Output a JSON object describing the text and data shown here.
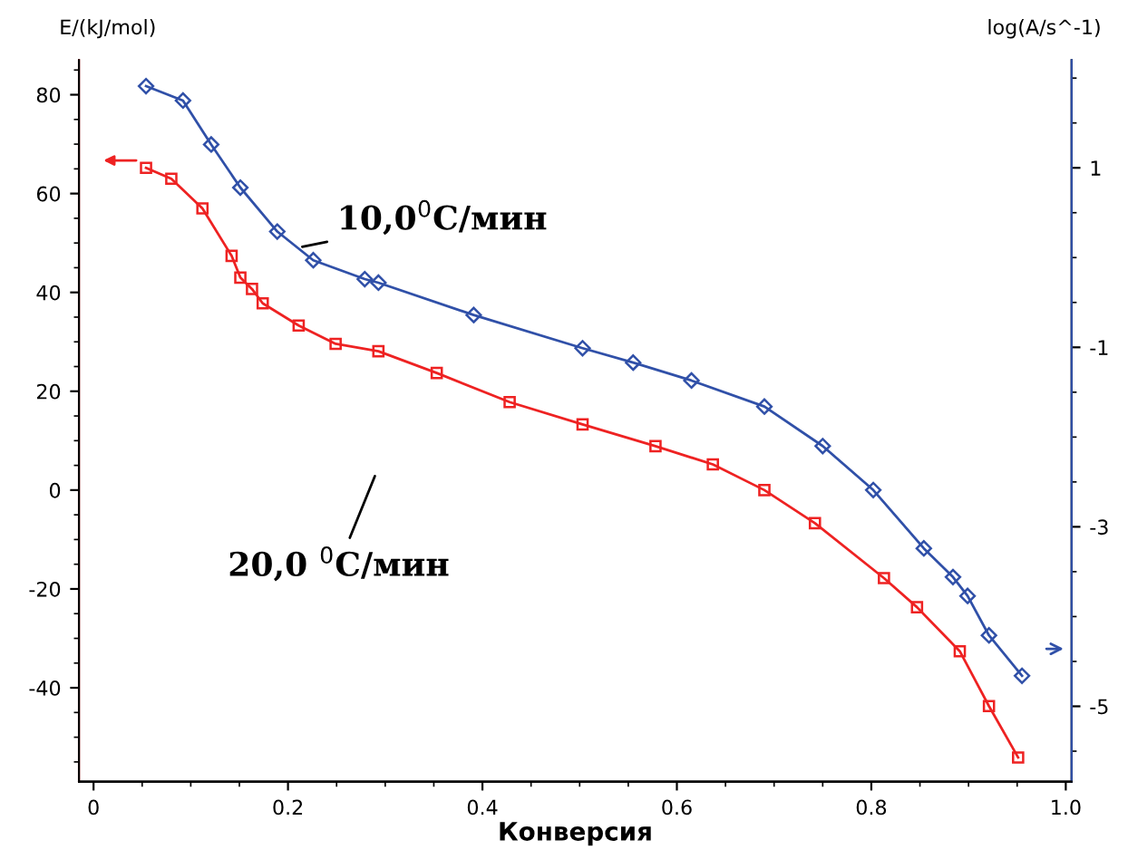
{
  "chart_data": {
    "type": "line",
    "xlabel": "Конверсия",
    "ylabel": "E/(kJ/mol)",
    "y2label": "log(A/s^-1)",
    "xlim": [
      -0.015,
      1.006
    ],
    "xticks": [
      0,
      0.2,
      0.4,
      0.6,
      0.8,
      {
        "value": 1.0,
        "label": "1.0"
      }
    ],
    "ylim": [
      -59,
      87
    ],
    "yticks": [
      -40,
      -20,
      0,
      20,
      40,
      60,
      80
    ],
    "y2lim": [
      -5.84,
      2.2
    ],
    "y2ticks": [
      -5,
      -3,
      -1,
      1
    ],
    "grid": false,
    "line_style": "solid",
    "annotations": [
      "10,0$^{0}$C/мин",
      "20,0 $^{0}$C/мин"
    ],
    "series": [
      {
        "color": "#ee2222",
        "marker": "square",
        "x": [
          0.054,
          0.08,
          0.112,
          0.142,
          0.151,
          0.163,
          0.174,
          0.211,
          0.249,
          0.293,
          0.353,
          0.428,
          0.503,
          0.578,
          0.637,
          0.69,
          0.742,
          0.813,
          0.847,
          0.891,
          0.921,
          0.951
        ],
        "values": [
          65.2,
          63,
          57,
          47.4,
          43,
          40.7,
          37.8,
          33.3,
          29.6,
          28.1,
          23.7,
          17.8,
          13.3,
          8.9,
          5.2,
          0,
          -6.7,
          -17.8,
          -23.7,
          -32.6,
          -43.7,
          -54.1
        ]
      },
      {
        "color": "#3050a8",
        "marker": "diamond",
        "axis": "y2",
        "x": [
          0.054,
          0.092,
          0.121,
          0.151,
          0.189,
          0.226,
          0.279,
          0.293,
          0.391,
          0.503,
          0.555,
          0.615,
          0.69,
          0.75,
          0.802,
          0.854,
          0.884,
          0.899,
          0.921,
          0.955
        ],
        "values": [
          1.91,
          1.75,
          1.26,
          0.78,
          0.29,
          -0.03,
          -0.24,
          -0.28,
          -0.64,
          -1.01,
          -1.17,
          -1.37,
          -1.66,
          -2.1,
          -2.59,
          -3.24,
          -3.56,
          -3.77,
          -4.21,
          -4.66
        ]
      }
    ]
  }
}
